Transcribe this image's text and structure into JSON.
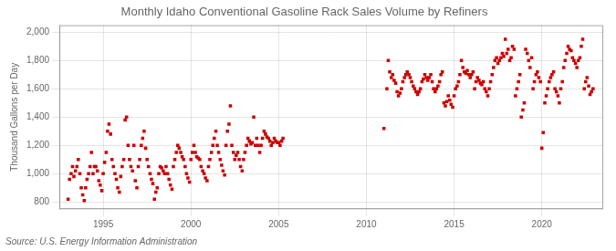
{
  "chart_data": {
    "type": "scatter",
    "title": "Monthly Idaho Conventional Gasoline Rack Sales Volume by Refiners",
    "ylabel": "Thousand Gallons per Day",
    "annotations": [
      "Source: U.S. Energy Information Administration"
    ],
    "color": "#cc0000",
    "marker": "square",
    "grid": true,
    "xlim": [
      1992.5,
      2023.5
    ],
    "xticks": [
      1995,
      2000,
      2005,
      2010,
      2015,
      2020
    ],
    "ylim": [
      750,
      2050
    ],
    "yticks": [
      800,
      {
        "value": 1000,
        "label": "1,000"
      },
      {
        "value": 1200,
        "label": "1,200"
      },
      {
        "value": 1400,
        "label": "1,400"
      },
      {
        "value": 1600,
        "label": "1,600"
      },
      {
        "value": 1800,
        "label": "1,800"
      },
      {
        "value": 2000,
        "label": "2,000"
      }
    ],
    "x": [
      1993.0,
      1993.08,
      1993.17,
      1993.25,
      1993.33,
      1993.42,
      1993.5,
      1993.58,
      1993.67,
      1993.75,
      1993.83,
      1993.92,
      1994.0,
      1994.08,
      1994.17,
      1994.25,
      1994.33,
      1994.42,
      1994.5,
      1994.58,
      1994.67,
      1994.75,
      1994.83,
      1994.92,
      1995.0,
      1995.08,
      1995.17,
      1995.25,
      1995.33,
      1995.42,
      1995.5,
      1995.58,
      1995.67,
      1995.75,
      1995.83,
      1995.92,
      1996.0,
      1996.08,
      1996.17,
      1996.25,
      1996.33,
      1996.42,
      1996.5,
      1996.58,
      1996.67,
      1996.75,
      1996.83,
      1996.92,
      1997.0,
      1997.08,
      1997.17,
      1997.25,
      1997.33,
      1997.42,
      1997.5,
      1997.58,
      1997.67,
      1997.75,
      1997.83,
      1997.92,
      1998.0,
      1998.08,
      1998.17,
      1998.25,
      1998.33,
      1998.42,
      1998.5,
      1998.58,
      1998.67,
      1998.75,
      1998.83,
      1998.92,
      1999.0,
      1999.08,
      1999.17,
      1999.25,
      1999.33,
      1999.42,
      1999.5,
      1999.58,
      1999.67,
      1999.75,
      1999.83,
      1999.92,
      2000.0,
      2000.08,
      2000.17,
      2000.25,
      2000.33,
      2000.42,
      2000.5,
      2000.58,
      2000.67,
      2000.75,
      2000.83,
      2000.92,
      2001.0,
      2001.08,
      2001.17,
      2001.25,
      2001.33,
      2001.42,
      2001.5,
      2001.58,
      2001.67,
      2001.75,
      2001.83,
      2001.92,
      2002.0,
      2002.08,
      2002.17,
      2002.25,
      2002.33,
      2002.42,
      2002.5,
      2002.58,
      2002.67,
      2002.75,
      2002.83,
      2002.92,
      2003.0,
      2003.08,
      2003.17,
      2003.25,
      2003.33,
      2003.42,
      2003.5,
      2003.58,
      2003.67,
      2003.75,
      2003.83,
      2003.92,
      2004.0,
      2004.08,
      2004.17,
      2004.25,
      2004.33,
      2004.42,
      2004.5,
      2004.58,
      2004.67,
      2004.75,
      2004.83,
      2004.92,
      2005.0,
      2005.08,
      2005.17,
      2005.25,
      2011.0,
      2011.17,
      2011.25,
      2011.33,
      2011.42,
      2011.5,
      2011.58,
      2011.67,
      2011.75,
      2011.83,
      2011.92,
      2012.0,
      2012.08,
      2012.17,
      2012.25,
      2012.33,
      2012.42,
      2012.5,
      2012.58,
      2012.67,
      2012.75,
      2012.83,
      2012.92,
      2013.0,
      2013.08,
      2013.17,
      2013.25,
      2013.33,
      2013.42,
      2013.5,
      2013.58,
      2013.67,
      2013.75,
      2013.83,
      2013.92,
      2014.0,
      2014.08,
      2014.17,
      2014.25,
      2014.33,
      2014.42,
      2014.5,
      2014.58,
      2014.67,
      2014.75,
      2014.83,
      2014.92,
      2015.0,
      2015.08,
      2015.17,
      2015.25,
      2015.33,
      2015.42,
      2015.5,
      2015.58,
      2015.67,
      2015.75,
      2015.83,
      2015.92,
      2016.0,
      2016.08,
      2016.17,
      2016.25,
      2016.33,
      2016.42,
      2016.5,
      2016.58,
      2016.67,
      2016.75,
      2016.83,
      2016.92,
      2017.0,
      2017.08,
      2017.17,
      2017.25,
      2017.33,
      2017.42,
      2017.5,
      2017.58,
      2017.67,
      2017.75,
      2017.83,
      2017.92,
      2018.0,
      2018.08,
      2018.17,
      2018.25,
      2018.33,
      2018.42,
      2018.5,
      2018.58,
      2018.67,
      2018.75,
      2018.83,
      2018.92,
      2019.0,
      2019.08,
      2019.17,
      2019.25,
      2019.33,
      2019.42,
      2019.5,
      2019.58,
      2019.67,
      2019.75,
      2019.83,
      2019.92,
      2020.0,
      2020.08,
      2020.17,
      2020.25,
      2020.33,
      2020.42,
      2020.5,
      2020.58,
      2020.67,
      2020.75,
      2020.83,
      2020.92,
      2021.0,
      2021.08,
      2021.17,
      2021.25,
      2021.33,
      2021.42,
      2021.5,
      2021.58,
      2021.67,
      2021.75,
      2021.83,
      2021.92,
      2022.0,
      2022.08,
      2022.17,
      2022.25,
      2022.33,
      2022.42,
      2022.5,
      2022.58,
      2022.67,
      2022.75,
      2022.83,
      2022.92
    ],
    "values": [
      820,
      960,
      1000,
      1050,
      980,
      1020,
      1050,
      1100,
      1000,
      900,
      850,
      810,
      900,
      960,
      1000,
      1050,
      1150,
      1000,
      1050,
      1050,
      1020,
      950,
      920,
      880,
      1000,
      1080,
      1150,
      1300,
      1350,
      1280,
      1100,
      1050,
      1000,
      960,
      900,
      870,
      980,
      1050,
      1100,
      1380,
      1400,
      1200,
      1100,
      1050,
      1020,
      1200,
      950,
      900,
      1050,
      1100,
      1200,
      1250,
      1300,
      1180,
      1100,
      1050,
      1000,
      960,
      930,
      820,
      870,
      900,
      1000,
      1050,
      1040,
      1020,
      1000,
      1050,
      1000,
      960,
      920,
      890,
      1050,
      1100,
      1150,
      1200,
      1180,
      1150,
      1120,
      1100,
      1050,
      1000,
      970,
      940,
      1100,
      1150,
      1200,
      1150,
      1120,
      1110,
      1100,
      1050,
      1020,
      1000,
      970,
      950,
      1050,
      1100,
      1150,
      1200,
      1250,
      1300,
      1200,
      1150,
      1100,
      1060,
      1020,
      990,
      1200,
      1300,
      1350,
      1480,
      1200,
      1150,
      1100,
      1130,
      1150,
      1100,
      1050,
      1020,
      1100,
      1150,
      1200,
      1250,
      1230,
      1210,
      1220,
      1400,
      1200,
      1250,
      1200,
      1150,
      1200,
      1250,
      1300,
      1280,
      1260,
      1250,
      1230,
      1200,
      1220,
      1250,
      1230,
      1220,
      1220,
      1200,
      1230,
      1250,
      1320,
      1600,
      1800,
      1720,
      1680,
      1700,
      1660,
      1640,
      1580,
      1550,
      1570,
      1600,
      1650,
      1680,
      1700,
      1720,
      1700,
      1680,
      1650,
      1620,
      1600,
      1580,
      1560,
      1580,
      1600,
      1650,
      1670,
      1700,
      1680,
      1660,
      1680,
      1700,
      1650,
      1600,
      1580,
      1600,
      1620,
      1650,
      1700,
      1720,
      1500,
      1480,
      1510,
      1550,
      1520,
      1490,
      1470,
      1550,
      1600,
      1620,
      1650,
      1700,
      1800,
      1750,
      1720,
      1710,
      1730,
      1700,
      1680,
      1700,
      1720,
      1600,
      1650,
      1680,
      1660,
      1640,
      1630,
      1650,
      1600,
      1580,
      1550,
      1600,
      1650,
      1700,
      1750,
      1800,
      1820,
      1780,
      1800,
      1820,
      1850,
      1830,
      1950,
      1850,
      1880,
      1800,
      1820,
      1900,
      1880,
      1550,
      1600,
      1650,
      1700,
      1400,
      1450,
      1500,
      1880,
      1850,
      1800,
      1750,
      1820,
      1600,
      1650,
      1700,
      1720,
      1680,
      1650,
      1180,
      1290,
      1500,
      1550,
      1600,
      1650,
      1680,
      1700,
      1720,
      1600,
      1580,
      1550,
      1500,
      1600,
      1650,
      1750,
      1800,
      1850,
      1900,
      1880,
      1870,
      1820,
      1800,
      1780,
      1750,
      1800,
      1820,
      1900,
      1950,
      1600,
      1650,
      1680,
      1620,
      1560,
      1580,
      1600
    ]
  }
}
